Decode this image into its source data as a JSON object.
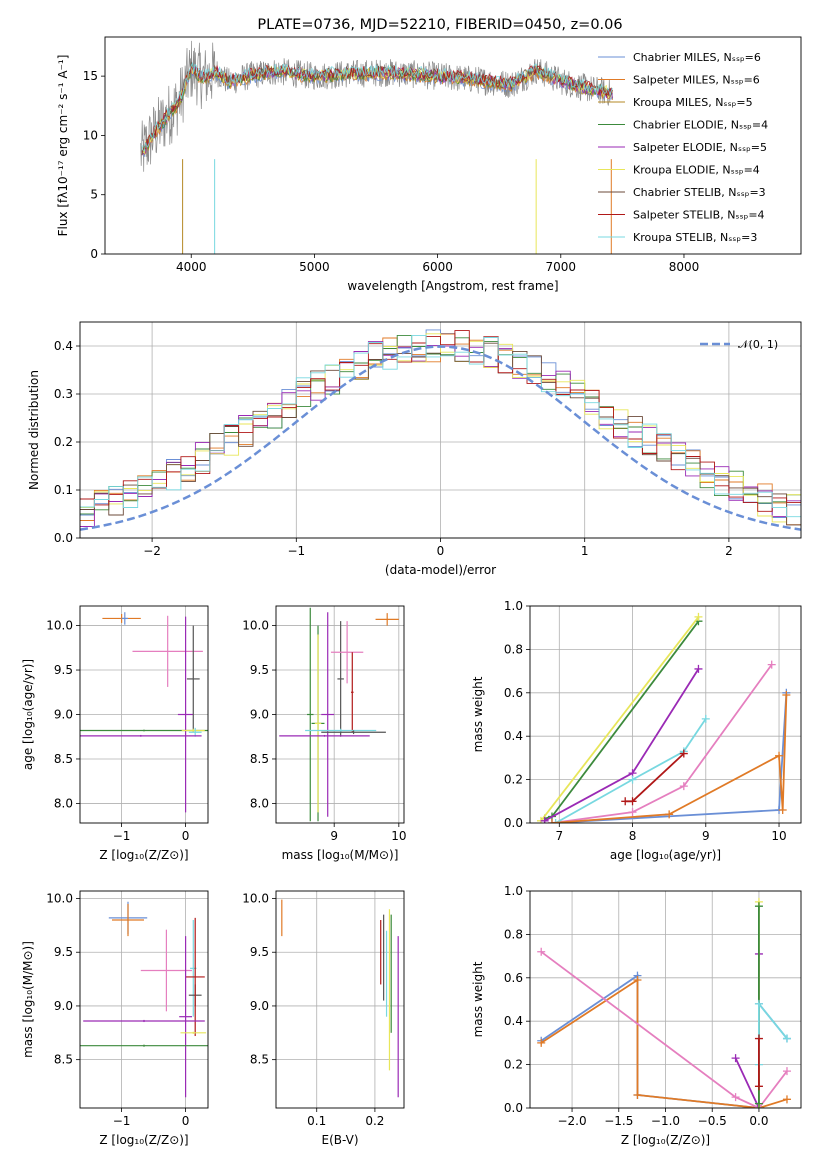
{
  "title": "PLATE=0736, MJD=52210, FIBERID=0450, z=0.06",
  "colors": [
    "#6a8fd6",
    "#e07a26",
    "#b58926",
    "#3c8a3c",
    "#9a2ab5",
    "#e8e65a",
    "#6b4a3a",
    "#b01818",
    "#78d8e0",
    "#e57fbf",
    "#909090",
    "#c0e040"
  ],
  "chart_data": [
    {
      "id": "spectrum",
      "type": "line",
      "xlabel": "wavelength [Angstrom, rest frame]",
      "ylabel": "Flux [fλ10⁻¹⁷ erg cm⁻² s⁻¹ A⁻¹]",
      "xlim": [
        3300,
        8950
      ],
      "ylim": [
        0,
        18.3
      ],
      "xticks": [
        4000,
        5000,
        6000,
        7000,
        8000
      ],
      "yticks": [
        0,
        5,
        10,
        15
      ],
      "legend_position": "right",
      "series": [
        {
          "name": "Chabrier MILES, N_SSP=6",
          "color": "#6a8fd6"
        },
        {
          "name": "Salpeter MILES, N_SSP=6",
          "color": "#e07a26"
        },
        {
          "name": "Kroupa MILES, N_SSP=5",
          "color": "#b58926"
        },
        {
          "name": "Chabrier ELODIE, N_SSP=4",
          "color": "#3c8a3c"
        },
        {
          "name": "Salpeter ELODIE, N_SSP=5",
          "color": "#9a2ab5"
        },
        {
          "name": "Kroupa ELODIE, N_SSP=4",
          "color": "#e8e65a"
        },
        {
          "name": "Chabrier STELIB, N_SSP=3",
          "color": "#6b4a3a"
        },
        {
          "name": "Salpeter STELIB, N_SSP=4",
          "color": "#b01818"
        },
        {
          "name": "Kroupa STELIB, N_SSP=3",
          "color": "#78d8e0"
        }
      ],
      "data_envelope": {
        "x": [
          3600,
          3700,
          3800,
          3900,
          4000,
          4100,
          4200,
          4300,
          4500,
          4700,
          5000,
          5300,
          5600,
          6000,
          6300,
          6600,
          6800,
          7000,
          7200,
          7400
        ],
        "y": [
          8.5,
          10.2,
          11.5,
          12.8,
          15.6,
          14.8,
          15.4,
          14.5,
          15.1,
          15.4,
          15.0,
          15.2,
          15.3,
          15.0,
          14.7,
          14.3,
          15.5,
          14.6,
          14.0,
          13.6
        ]
      }
    },
    {
      "id": "residuals",
      "type": "line",
      "xlabel": "(data-model)/error",
      "ylabel": "Normed distribution",
      "xlim": [
        -2.5,
        2.5
      ],
      "ylim": [
        0,
        0.45
      ],
      "xticks": [
        -2,
        -1,
        0,
        1,
        2
      ],
      "yticks": [
        0.0,
        0.1,
        0.2,
        0.3,
        0.4
      ],
      "legend_position": "top-right",
      "reference": {
        "name": "𝒩(0, 1)",
        "mean": 0,
        "sigma": 1,
        "color": "#6a8fd6"
      }
    },
    {
      "id": "age-vs-Z",
      "type": "scatter",
      "xlabel": "Z [log₁₀(Z/Z⊙)]",
      "ylabel": "age  [log₁₀(age/yr)]",
      "xlim": [
        -1.65,
        0.35
      ],
      "ylim": [
        7.78,
        10.22
      ],
      "xticks": [
        -1,
        0
      ],
      "yticks": [
        8.0,
        8.5,
        9.0,
        9.5,
        10.0
      ],
      "points": [
        {
          "x": -1.0,
          "xerr": 0.3,
          "y": 10.08,
          "yerr": 0.05,
          "color": "#e07a26"
        },
        {
          "x": -0.95,
          "xerr": 0.05,
          "y": 10.08,
          "yerr": 0.07,
          "color": "#6a8fd6"
        },
        {
          "x": -0.28,
          "xerr": 0.55,
          "y": 9.71,
          "yerr": 0.4,
          "color": "#e57fbf"
        },
        {
          "x": 0.0,
          "xerr": 0.12,
          "y": 9.0,
          "yerr": 1.1,
          "color": "#9a2ab5"
        },
        {
          "x": 0.12,
          "xerr": 0.1,
          "y": 9.4,
          "yerr": 0.6,
          "color": "#555555"
        },
        {
          "x": -0.65,
          "xerr": 1.0,
          "y": 8.82,
          "yerr": 0.01,
          "color": "#3c8a3c"
        },
        {
          "x": 0.12,
          "xerr": 0.18,
          "y": 8.82,
          "yerr": 0.02,
          "color": "#e8e65a"
        },
        {
          "x": 0.15,
          "xerr": 0.1,
          "y": 8.8,
          "yerr": 0.05,
          "color": "#78d8e0"
        },
        {
          "x": -0.7,
          "xerr": 0.95,
          "y": 8.76,
          "yerr": 0.01,
          "color": "#9a2ab5"
        }
      ]
    },
    {
      "id": "age-vs-mass",
      "type": "scatter",
      "xlabel": "mass [log₁₀(M/M⊙)]",
      "ylabel": "",
      "xlim": [
        8.1,
        10.08
      ],
      "ylim": [
        7.78,
        10.22
      ],
      "xticks": [
        9,
        10
      ],
      "yticks": [
        8.0,
        8.5,
        9.0,
        9.5,
        10.0
      ],
      "points": [
        {
          "x": 9.82,
          "xerr": 0.18,
          "y": 10.07,
          "yerr": 0.07,
          "color": "#e07a26"
        },
        {
          "x": 8.75,
          "xerr": 0.1,
          "y": 8.9,
          "yerr": 1.1,
          "color": "#3c8a3c"
        },
        {
          "x": 8.9,
          "xerr": 0.1,
          "y": 9.0,
          "yerr": 1.15,
          "color": "#9a2ab5"
        },
        {
          "x": 8.63,
          "xerr": 0.05,
          "y": 9.0,
          "yerr": 1.2,
          "color": "#3c8a3c"
        },
        {
          "x": 9.1,
          "xerr": 0.05,
          "y": 9.4,
          "yerr": 0.65,
          "color": "#555555"
        },
        {
          "x": 9.2,
          "xerr": 0.25,
          "y": 9.7,
          "yerr": 0.35,
          "color": "#e57fbf"
        },
        {
          "x": 9.28,
          "xerr": 0.02,
          "y": 9.25,
          "yerr": 0.45,
          "color": "#b01818"
        },
        {
          "x": 8.75,
          "xerr": 0.05,
          "y": 8.9,
          "yerr": 1.0,
          "color": "#e8e65a"
        },
        {
          "x": 9.1,
          "xerr": 0.55,
          "y": 8.82,
          "yerr": 0.02,
          "color": "#78d8e0"
        },
        {
          "x": 9.3,
          "xerr": 0.5,
          "y": 8.8,
          "yerr": 0.02,
          "color": "#555555"
        },
        {
          "x": 8.85,
          "xerr": 0.7,
          "y": 8.76,
          "yerr": 0.01,
          "color": "#9a2ab5"
        }
      ]
    },
    {
      "id": "massweight-vs-age",
      "type": "line",
      "xlabel": "age  [log₁₀(age/yr)]",
      "ylabel": "mass weight",
      "xlim": [
        6.6,
        10.3
      ],
      "ylim": [
        0.0,
        1.0
      ],
      "xticks": [
        7,
        8,
        9,
        10
      ],
      "yticks": [
        0.0,
        0.2,
        0.4,
        0.6,
        0.8,
        1.0
      ],
      "series": [
        {
          "color": "#3c8a3c",
          "x": [
            6.8,
            6.9,
            8.9
          ],
          "y": [
            0.02,
            0.03,
            0.93
          ]
        },
        {
          "color": "#e8e65a",
          "x": [
            6.75,
            8.9
          ],
          "y": [
            0.01,
            0.95
          ]
        },
        {
          "color": "#9a2ab5",
          "x": [
            6.8,
            8.0,
            8.9
          ],
          "y": [
            0.01,
            0.23,
            0.71
          ]
        },
        {
          "color": "#e57fbf",
          "x": [
            6.9,
            8.0,
            8.7,
            9.9
          ],
          "y": [
            0.0,
            0.05,
            0.17,
            0.73
          ]
        },
        {
          "color": "#78d8e0",
          "x": [
            6.95,
            8.0,
            8.7,
            9.0
          ],
          "y": [
            0.0,
            0.2,
            0.33,
            0.48
          ]
        },
        {
          "color": "#b01818",
          "x": [
            7.9,
            8.0,
            8.7
          ],
          "y": [
            0.1,
            0.1,
            0.32
          ]
        },
        {
          "color": "#6a8fd6",
          "x": [
            6.9,
            10.0,
            10.1
          ],
          "y": [
            0.0,
            0.06,
            0.6
          ]
        },
        {
          "color": "#e07a26",
          "x": [
            6.9,
            8.5,
            10.0,
            10.05,
            10.1
          ],
          "y": [
            0.0,
            0.04,
            0.31,
            0.06,
            0.59
          ]
        }
      ]
    },
    {
      "id": "mass-vs-Z",
      "type": "scatter",
      "xlabel": "Z [log₁₀(Z/Z⊙)]",
      "ylabel": "mass [log₁₀(M/M⊙)]",
      "xlim": [
        -1.65,
        0.35
      ],
      "ylim": [
        8.05,
        10.07
      ],
      "xticks": [
        -1,
        0
      ],
      "yticks": [
        8.5,
        9.0,
        9.5,
        10.0
      ],
      "points": [
        {
          "x": -0.9,
          "xerr": 0.3,
          "y": 9.82,
          "yerr": 0.15,
          "color": "#6a8fd6"
        },
        {
          "x": -0.9,
          "xerr": 0.25,
          "y": 9.8,
          "yerr": 0.15,
          "color": "#e07a26"
        },
        {
          "x": -0.3,
          "xerr": 0.4,
          "y": 9.33,
          "yerr": 0.38,
          "color": "#e57fbf"
        },
        {
          "x": 0.12,
          "xerr": 0.05,
          "y": 9.35,
          "yerr": 0.45,
          "color": "#78d8e0"
        },
        {
          "x": 0.15,
          "xerr": 0.1,
          "y": 9.1,
          "yerr": 0.1,
          "color": "#555555"
        },
        {
          "x": 0.15,
          "xerr": 0.15,
          "y": 9.27,
          "yerr": 0.55,
          "color": "#b01818"
        },
        {
          "x": 0.0,
          "xerr": 0.1,
          "y": 8.9,
          "yerr": 0.75,
          "color": "#9a2ab5"
        },
        {
          "x": -0.65,
          "xerr": 0.95,
          "y": 8.86,
          "yerr": 0.01,
          "color": "#9a2ab5"
        },
        {
          "x": 0.12,
          "xerr": 0.2,
          "y": 8.75,
          "yerr": 0.01,
          "color": "#e8e65a"
        },
        {
          "x": -0.65,
          "xerr": 1.0,
          "y": 8.63,
          "yerr": 0.01,
          "color": "#3c8a3c"
        }
      ]
    },
    {
      "id": "mass-vs-EBV",
      "type": "scatter",
      "xlabel": "E(B-V)",
      "ylabel": "",
      "xlim": [
        0.03,
        0.25
      ],
      "ylim": [
        8.05,
        10.07
      ],
      "xticks": [
        0.1,
        0.2
      ],
      "yticks": [
        8.5,
        9.0,
        9.5,
        10.0
      ],
      "points": [
        {
          "x": 0.04,
          "xerr": 0.0,
          "y": 9.82,
          "yerr": 0.17,
          "color": "#e07a26"
        },
        {
          "x": 0.21,
          "xerr": 0.0,
          "y": 9.5,
          "yerr": 0.3,
          "color": "#b01818"
        },
        {
          "x": 0.215,
          "xerr": 0.0,
          "y": 9.45,
          "yerr": 0.4,
          "color": "#555555"
        },
        {
          "x": 0.22,
          "xerr": 0.0,
          "y": 9.3,
          "yerr": 0.4,
          "color": "#78d8e0"
        },
        {
          "x": 0.225,
          "xerr": 0.0,
          "y": 9.15,
          "yerr": 0.75,
          "color": "#e8e65a"
        },
        {
          "x": 0.228,
          "xerr": 0.0,
          "y": 9.3,
          "yerr": 0.55,
          "color": "#3c8a3c"
        },
        {
          "x": 0.24,
          "xerr": 0.0,
          "y": 8.9,
          "yerr": 0.75,
          "color": "#9a2ab5"
        }
      ]
    },
    {
      "id": "massweight-vs-Z",
      "type": "line",
      "xlabel": "Z [log₁₀(Z/Z⊙)]",
      "ylabel": "mass weight",
      "xlim": [
        -2.45,
        0.45
      ],
      "ylim": [
        0.0,
        1.0
      ],
      "xticks": [
        -2.0,
        -1.5,
        -1.0,
        -0.5,
        0.0
      ],
      "yticks": [
        0.0,
        0.2,
        0.4,
        0.6,
        0.8,
        1.0
      ],
      "series": [
        {
          "color": "#6a8fd6",
          "x": [
            -2.33,
            -1.3,
            -1.3,
            0.0,
            0.0,
            0.3
          ],
          "y": [
            0.31,
            0.61,
            0.06,
            0.0,
            0.48,
            0.32
          ]
        },
        {
          "color": "#e07a26",
          "x": [
            -2.33,
            -1.3,
            -1.3,
            0.0,
            0.3
          ],
          "y": [
            0.3,
            0.59,
            0.06,
            0.0,
            0.04
          ]
        },
        {
          "color": "#e57fbf",
          "x": [
            -2.33,
            -0.25,
            0.0,
            0.3
          ],
          "y": [
            0.72,
            0.05,
            0.0,
            0.17
          ]
        },
        {
          "color": "#9a2ab5",
          "x": [
            -0.25,
            0.0,
            0.0
          ],
          "y": [
            0.23,
            0.0,
            0.71
          ]
        },
        {
          "color": "#e8e65a",
          "x": [
            0.0,
            0.0
          ],
          "y": [
            0.0,
            0.95
          ]
        },
        {
          "color": "#3c8a3c",
          "x": [
            0.0,
            0.0
          ],
          "y": [
            0.02,
            0.93
          ]
        },
        {
          "color": "#78d8e0",
          "x": [
            0.0,
            0.0,
            0.3
          ],
          "y": [
            0.2,
            0.48,
            0.32
          ]
        },
        {
          "color": "#b01818",
          "x": [
            0.0,
            0.0
          ],
          "y": [
            0.1,
            0.32
          ]
        }
      ]
    }
  ]
}
